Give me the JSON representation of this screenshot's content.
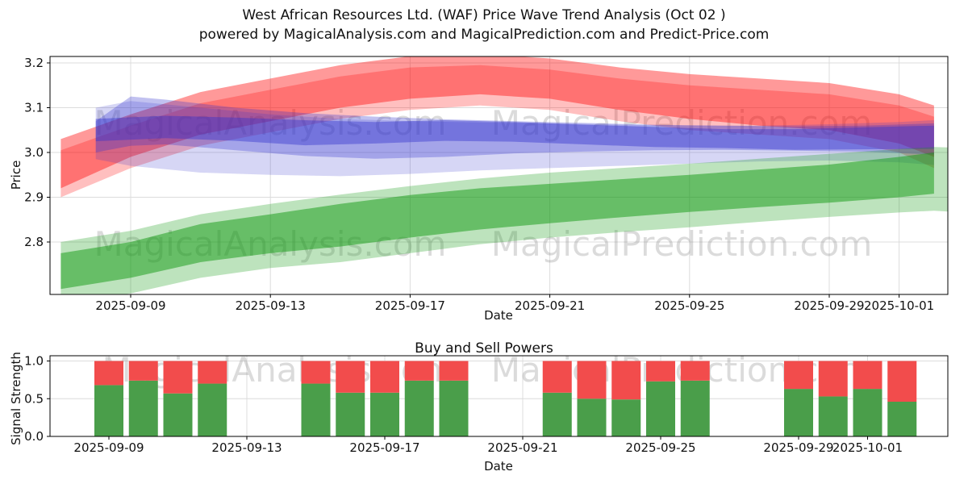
{
  "header": {
    "title_line1": "West African Resources Ltd. (WAF) Price Wave Trend Analysis (Oct 02 )",
    "title_line2": "powered by MagicalAnalysis.com and MagicalPrediction.com and Predict-Price.com"
  },
  "watermarks": {
    "left": "MagicalAnalysis.com",
    "right": "MagicalPrediction.com"
  },
  "chart_data": [
    {
      "type": "area",
      "name": "price-wave-trend",
      "xlabel": "Date",
      "ylabel": "Price",
      "ylim": [
        2.683,
        3.215
      ],
      "xlim": [
        "2025-09-06",
        "2025-10-03"
      ],
      "grid": true,
      "legend": "none",
      "yticks": [
        2.8,
        2.9,
        3.0,
        3.1,
        3.2
      ],
      "xticks": [
        "2025-09-09",
        "2025-09-13",
        "2025-09-17",
        "2025-09-21",
        "2025-09-25",
        "2025-09-29",
        "2025-10-01"
      ],
      "bands": [
        {
          "name": "sell-wave-outer",
          "color": "#ff0000",
          "opacity": 0.4,
          "dates": [
            "2025-09-07",
            "2025-09-09",
            "2025-09-11",
            "2025-09-13",
            "2025-09-15",
            "2025-09-17",
            "2025-09-19",
            "2025-09-21",
            "2025-09-23",
            "2025-09-25",
            "2025-09-27",
            "2025-09-29",
            "2025-10-01",
            "2025-10-02"
          ],
          "hi": [
            3.03,
            3.085,
            3.135,
            3.165,
            3.195,
            3.215,
            3.22,
            3.21,
            3.19,
            3.175,
            3.165,
            3.155,
            3.13,
            3.105
          ],
          "lo": [
            2.92,
            2.99,
            3.04,
            3.07,
            3.1,
            3.12,
            3.13,
            3.12,
            3.095,
            3.075,
            3.06,
            3.05,
            3.02,
            2.99
          ]
        },
        {
          "name": "sell-wave-inner",
          "color": "#ff0000",
          "opacity": 0.25,
          "dates": [
            "2025-09-07",
            "2025-09-09",
            "2025-09-11",
            "2025-09-13",
            "2025-09-15",
            "2025-09-17",
            "2025-09-19",
            "2025-09-21",
            "2025-09-23",
            "2025-09-25",
            "2025-09-27",
            "2025-09-29",
            "2025-10-01",
            "2025-10-02"
          ],
          "hi": [
            3.005,
            3.06,
            3.11,
            3.14,
            3.17,
            3.19,
            3.195,
            3.185,
            3.165,
            3.15,
            3.14,
            3.13,
            3.105,
            3.08
          ],
          "lo": [
            2.9,
            2.965,
            3.015,
            3.045,
            3.075,
            3.095,
            3.105,
            3.095,
            3.07,
            3.05,
            3.04,
            3.03,
            3.0,
            2.965
          ]
        },
        {
          "name": "trend-wave-light",
          "color": "#3333cc",
          "opacity": 0.2,
          "dates": [
            "2025-09-08",
            "2025-09-09",
            "2025-09-11",
            "2025-09-13",
            "2025-09-15",
            "2025-09-17",
            "2025-09-19",
            "2025-09-21",
            "2025-09-23",
            "2025-09-25",
            "2025-09-27",
            "2025-09-29",
            "2025-10-01",
            "2025-10-02"
          ],
          "hi": [
            3.1,
            3.115,
            3.1,
            3.085,
            3.075,
            3.07,
            3.067,
            3.065,
            3.062,
            3.06,
            3.06,
            3.063,
            3.068,
            3.072
          ],
          "lo": [
            2.985,
            2.97,
            2.955,
            2.95,
            2.947,
            2.952,
            2.96,
            2.965,
            2.97,
            2.975,
            2.98,
            2.982,
            2.978,
            2.972
          ]
        },
        {
          "name": "trend-wave-mid",
          "color": "#3333cc",
          "opacity": 0.3,
          "dates": [
            "2025-09-08",
            "2025-09-09",
            "2025-09-10",
            "2025-09-12",
            "2025-09-14",
            "2025-09-16",
            "2025-09-18",
            "2025-09-20",
            "2025-09-22",
            "2025-09-24",
            "2025-09-26",
            "2025-09-28",
            "2025-09-30",
            "2025-10-02"
          ],
          "hi": [
            3.07,
            3.125,
            3.118,
            3.1,
            3.088,
            3.08,
            3.074,
            3.07,
            3.066,
            3.062,
            3.06,
            3.058,
            3.06,
            3.065
          ],
          "lo": [
            3.0,
            3.015,
            3.018,
            3.005,
            2.992,
            2.986,
            2.99,
            2.998,
            3.002,
            3.005,
            3.006,
            3.004,
            3.002,
            2.995
          ]
        },
        {
          "name": "trend-wave-core",
          "color": "#3333cc",
          "opacity": 0.42,
          "dates": [
            "2025-09-08",
            "2025-09-10",
            "2025-09-12",
            "2025-09-14",
            "2025-09-16",
            "2025-09-18",
            "2025-09-20",
            "2025-09-22",
            "2025-09-24",
            "2025-09-26",
            "2025-09-28",
            "2025-09-30",
            "2025-10-02"
          ],
          "hi": [
            3.075,
            3.082,
            3.078,
            3.072,
            3.068,
            3.072,
            3.068,
            3.062,
            3.057,
            3.052,
            3.052,
            3.056,
            3.06
          ],
          "lo": [
            3.025,
            3.032,
            3.026,
            3.016,
            3.02,
            3.026,
            3.024,
            3.018,
            3.012,
            3.01,
            3.006,
            3.007,
            3.008
          ]
        },
        {
          "name": "buy-wave-outer",
          "color": "#119911",
          "opacity": 0.28,
          "dates": [
            "2025-09-07",
            "2025-09-09",
            "2025-09-11",
            "2025-09-13",
            "2025-09-15",
            "2025-09-17",
            "2025-09-19",
            "2025-09-21",
            "2025-09-23",
            "2025-09-25",
            "2025-09-27",
            "2025-09-29",
            "2025-10-01",
            "2025-10-02",
            "2025-10-03"
          ],
          "hi": [
            2.8,
            2.825,
            2.862,
            2.885,
            2.906,
            2.925,
            2.942,
            2.955,
            2.965,
            2.975,
            2.986,
            2.997,
            3.008,
            3.012,
            3.01
          ],
          "lo": [
            2.66,
            2.685,
            2.72,
            2.742,
            2.755,
            2.775,
            2.795,
            2.81,
            2.822,
            2.833,
            2.845,
            2.856,
            2.866,
            2.87,
            2.865
          ]
        },
        {
          "name": "buy-wave-inner",
          "color": "#119911",
          "opacity": 0.5,
          "dates": [
            "2025-09-07",
            "2025-09-09",
            "2025-09-11",
            "2025-09-13",
            "2025-09-15",
            "2025-09-17",
            "2025-09-19",
            "2025-09-21",
            "2025-09-23",
            "2025-09-25",
            "2025-09-27",
            "2025-09-29",
            "2025-10-01",
            "2025-10-02"
          ],
          "hi": [
            2.775,
            2.8,
            2.84,
            2.862,
            2.885,
            2.905,
            2.92,
            2.93,
            2.94,
            2.95,
            2.962,
            2.973,
            2.99,
            3.0
          ],
          "lo": [
            2.695,
            2.72,
            2.755,
            2.775,
            2.79,
            2.81,
            2.828,
            2.842,
            2.855,
            2.867,
            2.878,
            2.888,
            2.9,
            2.908
          ]
        }
      ]
    },
    {
      "type": "bar",
      "name": "buy-sell-powers",
      "title": "Buy and Sell Powers",
      "xlabel": "Date",
      "ylabel": "Signal Strength",
      "ylim": [
        0.0,
        1.07
      ],
      "grid": true,
      "yticks": [
        0.0,
        0.5,
        1.0
      ],
      "xticks": [
        "2025-09-09",
        "2025-09-13",
        "2025-09-17",
        "2025-09-21",
        "2025-09-25",
        "2025-09-29",
        "2025-10-01"
      ],
      "series": [
        {
          "name": "Buy power",
          "color": "#4a9e4a"
        },
        {
          "name": "Sell power",
          "color": "#f24c4c"
        }
      ],
      "bars": [
        {
          "date": "2025-09-09",
          "buy": 0.68,
          "sell": 0.32
        },
        {
          "date": "2025-09-10",
          "buy": 0.74,
          "sell": 0.26
        },
        {
          "date": "2025-09-11",
          "buy": 0.57,
          "sell": 0.43
        },
        {
          "date": "2025-09-12",
          "buy": 0.7,
          "sell": 0.3
        },
        {
          "date": "2025-09-15",
          "buy": 0.7,
          "sell": 0.3
        },
        {
          "date": "2025-09-16",
          "buy": 0.58,
          "sell": 0.42
        },
        {
          "date": "2025-09-17",
          "buy": 0.58,
          "sell": 0.42
        },
        {
          "date": "2025-09-18",
          "buy": 0.74,
          "sell": 0.26
        },
        {
          "date": "2025-09-19",
          "buy": 0.74,
          "sell": 0.26
        },
        {
          "date": "2025-09-22",
          "buy": 0.58,
          "sell": 0.42
        },
        {
          "date": "2025-09-23",
          "buy": 0.5,
          "sell": 0.5
        },
        {
          "date": "2025-09-24",
          "buy": 0.49,
          "sell": 0.51
        },
        {
          "date": "2025-09-25",
          "buy": 0.73,
          "sell": 0.27
        },
        {
          "date": "2025-09-26",
          "buy": 0.74,
          "sell": 0.26
        },
        {
          "date": "2025-09-29",
          "buy": 0.63,
          "sell": 0.37
        },
        {
          "date": "2025-09-30",
          "buy": 0.53,
          "sell": 0.47
        },
        {
          "date": "2025-10-01",
          "buy": 0.63,
          "sell": 0.37
        },
        {
          "date": "2025-10-02",
          "buy": 0.46,
          "sell": 0.54
        }
      ]
    }
  ]
}
